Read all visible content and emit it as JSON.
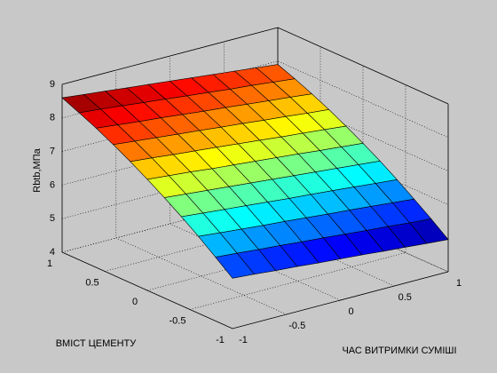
{
  "chart_data": {
    "type": "surface",
    "xlabel": "ЧАС ВИТРИМКИ СУМІШІ",
    "ylabel": "ВМІСТ ЦЕМЕНТУ",
    "zlabel": "Rbtb,МПа",
    "colormap": "jet",
    "grid": true,
    "background": "#c8c8c8",
    "x": [
      -1,
      -0.8,
      -0.6,
      -0.4,
      -0.2,
      0,
      0.2,
      0.4,
      0.6,
      0.8,
      1
    ],
    "y": [
      -1,
      -0.8,
      -0.6,
      -0.4,
      -0.2,
      0,
      0.2,
      0.4,
      0.6,
      0.8,
      1
    ],
    "z": [
      [
        5.5,
        5.45,
        5.39,
        5.34,
        5.28,
        5.23,
        5.18,
        5.12,
        5.07,
        5.01,
        4.96
      ],
      [
        5.9,
        5.85,
        5.79,
        5.74,
        5.68,
        5.63,
        5.57,
        5.51,
        5.46,
        5.4,
        5.35
      ],
      [
        6.29,
        6.23,
        6.17,
        6.11,
        6.06,
        6.0,
        5.94,
        5.89,
        5.83,
        5.77,
        5.71
      ],
      [
        6.65,
        6.59,
        6.53,
        6.47,
        6.41,
        6.35,
        6.3,
        6.24,
        6.18,
        6.12,
        6.06
      ],
      [
        6.99,
        6.93,
        6.87,
        6.81,
        6.75,
        6.69,
        6.63,
        6.57,
        6.51,
        6.45,
        6.39
      ],
      [
        7.31,
        7.25,
        7.19,
        7.12,
        7.06,
        7.0,
        6.94,
        6.88,
        6.81,
        6.75,
        6.69
      ],
      [
        7.61,
        7.55,
        7.48,
        7.42,
        7.36,
        7.29,
        7.23,
        7.16,
        7.1,
        7.04,
        6.97
      ],
      [
        7.89,
        7.82,
        7.76,
        7.69,
        7.63,
        7.56,
        7.5,
        7.43,
        7.37,
        7.3,
        7.24
      ],
      [
        8.15,
        8.08,
        8.01,
        7.95,
        7.88,
        7.81,
        7.75,
        7.68,
        7.61,
        7.55,
        7.48
      ],
      [
        8.38,
        8.32,
        8.25,
        8.18,
        8.11,
        8.04,
        7.97,
        7.9,
        7.84,
        7.77,
        7.7
      ],
      [
        8.6,
        8.53,
        8.46,
        8.39,
        8.32,
        8.25,
        8.18,
        8.11,
        8.04,
        7.97,
        7.9
      ]
    ],
    "xlim": [
      -1,
      1
    ],
    "xticks": [
      -1,
      -0.5,
      0,
      0.5,
      1
    ],
    "ylim": [
      -1,
      1
    ],
    "yticks": [
      -1,
      -0.5,
      0,
      0.5,
      1
    ],
    "zlim": [
      4,
      9
    ],
    "zticks": [
      4,
      5,
      6,
      7,
      8,
      9
    ]
  }
}
